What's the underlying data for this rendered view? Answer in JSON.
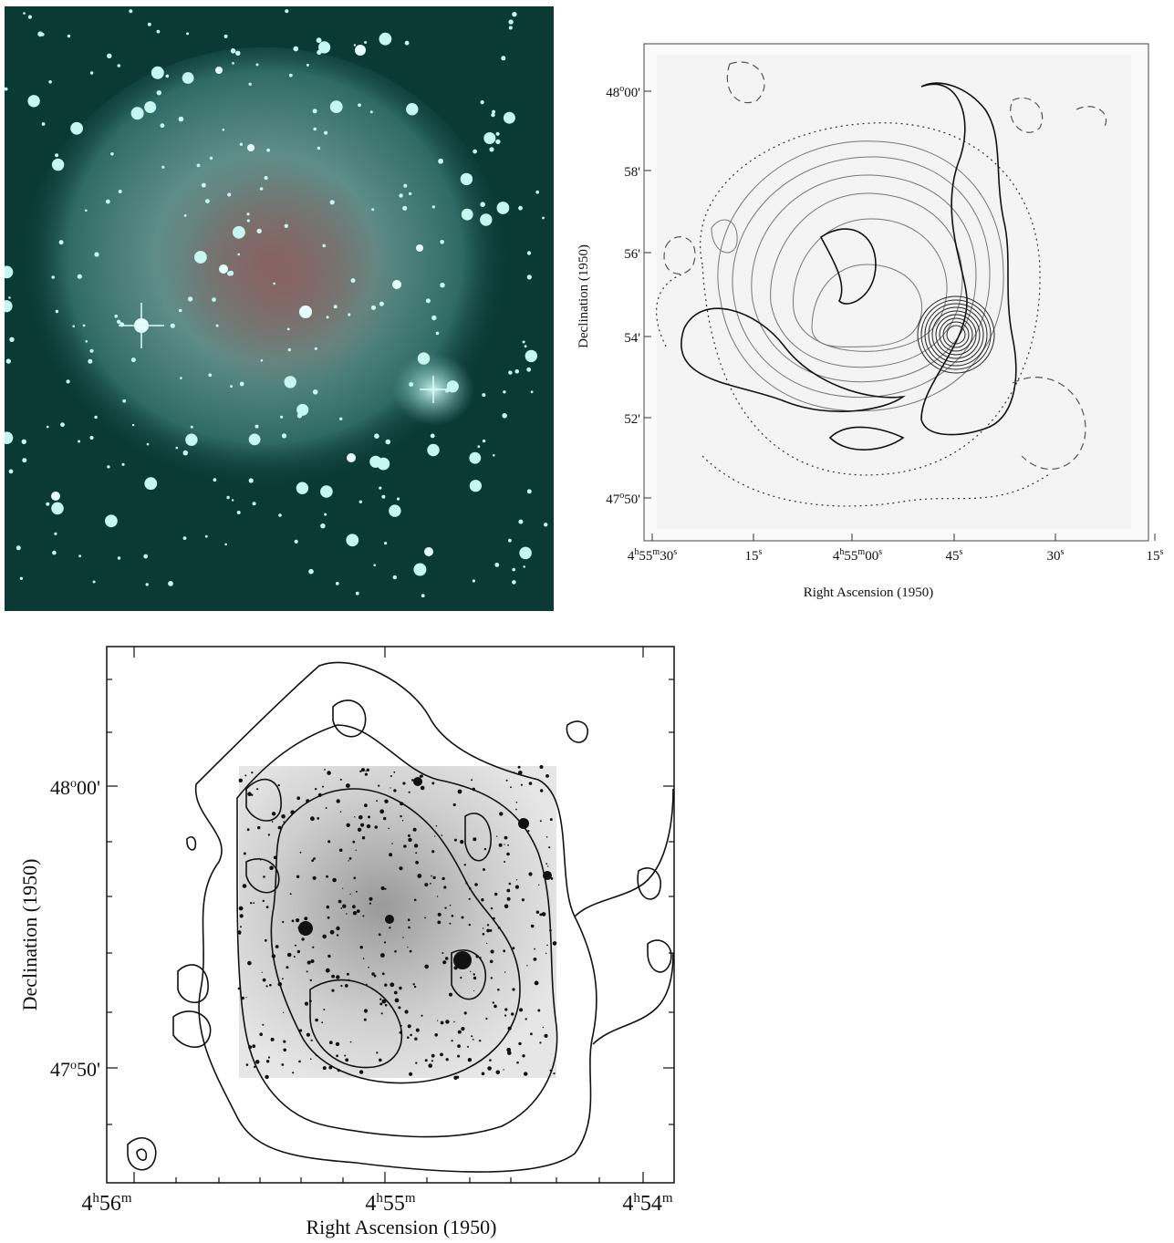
{
  "panels": {
    "photo": {
      "background": "#0b3a34",
      "nebula_color": "#6fb5ad",
      "core_color": "#8a5a55",
      "star_color": "#bff7f2"
    },
    "contour": {
      "dec_ticks": [
        "48°00'",
        "58'",
        "56'",
        "54'",
        "52'",
        "47°50'"
      ],
      "ra_ticks": [
        "4h55m30s",
        "15s",
        "4h55m00s",
        "45s",
        "30s",
        "15s"
      ],
      "ra_ticks_base": [
        "4",
        "h",
        "55",
        "m",
        "30",
        "s"
      ],
      "ra_label": "Right Ascension (1950)",
      "dec_label": "Declination (1950)"
    },
    "overlay": {
      "dec_ticks": [
        "48°00'",
        "47°50'"
      ],
      "ra_ticks": [
        "4h56m",
        "4h55m",
        "4h54m"
      ],
      "ra_label": "Right Ascension (1950)",
      "dec_label": "Declination (1950)"
    }
  },
  "labels": {
    "c_dec_1": "48",
    "c_dec_1b": "o",
    "c_dec_1c": "00'",
    "c_dec_2": "58'",
    "c_dec_3": "56'",
    "c_dec_4": "54'",
    "c_dec_5": "52'",
    "c_dec_6": "47",
    "c_dec_6b": "o",
    "c_dec_6c": "50'",
    "c_ra_1a": "4",
    "c_ra_1b": "h",
    "c_ra_1c": "55",
    "c_ra_1d": "m",
    "c_ra_1e": "30",
    "c_ra_1f": "s",
    "c_ra_2a": "15",
    "c_ra_2b": "s",
    "c_ra_3a": "4",
    "c_ra_3b": "h",
    "c_ra_3c": "55",
    "c_ra_3d": "m",
    "c_ra_3e": "00",
    "c_ra_3f": "s",
    "c_ra_4a": "45",
    "c_ra_4b": "s",
    "c_ra_5a": "30",
    "c_ra_5b": "s",
    "c_ra_6a": "15",
    "c_ra_6b": "s",
    "c_xlabel": "Right Ascension (1950)",
    "c_ylabel": "Declination (1950)",
    "o_dec_1": "48",
    "o_dec_1b": "o",
    "o_dec_1c": "00'",
    "o_dec_2": "47",
    "o_dec_2b": "o",
    "o_dec_2c": "50'",
    "o_ra_1a": "4",
    "o_ra_1b": "h",
    "o_ra_1c": "56",
    "o_ra_1d": "m",
    "o_ra_2a": "4",
    "o_ra_2b": "h",
    "o_ra_2c": "55",
    "o_ra_2d": "m",
    "o_ra_3a": "4",
    "o_ra_3b": "h",
    "o_ra_3c": "54",
    "o_ra_3d": "m",
    "o_xlabel": "Right Ascension (1950)",
    "o_ylabel": "Declination (1950)"
  }
}
